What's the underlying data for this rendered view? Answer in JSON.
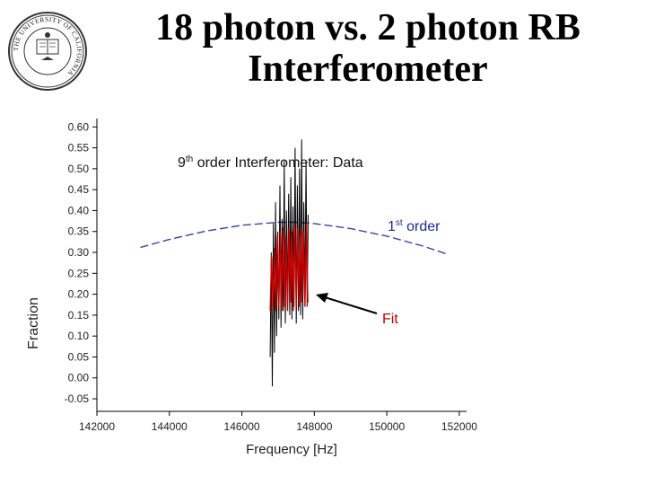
{
  "slide": {
    "title_line1": "18 photon vs. 2 photon RB",
    "title_line2": "Interferometer",
    "seal_text": "THE UNIVERSITY OF CALIFORNIA"
  },
  "colors": {
    "data_line": "#000000",
    "fit_line": "#cc0000",
    "first_order_line": "#3344aa",
    "first_order_label": "#1a2a9a",
    "fit_label": "#cc0000",
    "axis": "#000000"
  },
  "chart_data": {
    "type": "line",
    "title_main": "9",
    "title_sup": "th",
    "title_rest": " order Interferometer: Data",
    "xlabel": "Frequency [Hz]",
    "ylabel": "Fraction",
    "xlim": [
      142000,
      152200
    ],
    "ylim": [
      -0.08,
      0.62
    ],
    "x_ticks": [
      142000,
      144000,
      146000,
      148000,
      150000,
      152000
    ],
    "x_tick_labels": [
      "142000",
      "144000",
      "146000",
      "148000",
      "150000",
      "152000"
    ],
    "y_ticks": [
      0.6,
      0.55,
      0.5,
      0.45,
      0.4,
      0.35,
      0.3,
      0.25,
      0.2,
      0.15,
      0.1,
      0.05,
      0.0,
      -0.05
    ],
    "y_tick_labels": [
      "0.60",
      "0.55",
      "0.50",
      "0.45",
      "0.40",
      "0.35",
      "0.30",
      "0.25",
      "0.20",
      "0.15",
      "0.10",
      "0.05",
      "0.00",
      "-0.05"
    ],
    "series": [
      {
        "name": "Data (9th order)",
        "x": [
          146780,
          146810,
          146840,
          146870,
          146900,
          146930,
          146960,
          146990,
          147020,
          147050,
          147080,
          147110,
          147140,
          147170,
          147200,
          147230,
          147260,
          147290,
          147320,
          147350,
          147380,
          147410,
          147440,
          147470,
          147500,
          147530,
          147560,
          147590,
          147620,
          147650,
          147680,
          147710,
          147740,
          147770,
          147800,
          147830
        ],
        "y": [
          0.05,
          0.3,
          -0.02,
          0.37,
          0.06,
          0.42,
          0.1,
          0.35,
          0.14,
          0.46,
          0.12,
          0.38,
          0.16,
          0.52,
          0.13,
          0.4,
          0.18,
          0.44,
          0.15,
          0.48,
          0.14,
          0.41,
          0.17,
          0.55,
          0.13,
          0.46,
          0.16,
          0.5,
          0.15,
          0.57,
          0.14,
          0.42,
          0.19,
          0.52,
          0.17,
          0.39
        ]
      },
      {
        "name": "Fit",
        "x": [
          146780,
          146820,
          146860,
          146900,
          146940,
          146980,
          147020,
          147060,
          147100,
          147140,
          147180,
          147220,
          147260,
          147300,
          147340,
          147380,
          147420,
          147460,
          147500,
          147540,
          147580,
          147620,
          147660,
          147700,
          147740,
          147780,
          147820
        ],
        "y": [
          0.16,
          0.29,
          0.17,
          0.31,
          0.16,
          0.34,
          0.17,
          0.35,
          0.16,
          0.36,
          0.17,
          0.34,
          0.16,
          0.36,
          0.18,
          0.35,
          0.16,
          0.37,
          0.17,
          0.36,
          0.17,
          0.36,
          0.18,
          0.35,
          0.17,
          0.37,
          0.18
        ]
      },
      {
        "name": "1st order",
        "x": [
          143200,
          144000,
          145000,
          146000,
          147000,
          147500,
          148000,
          149000,
          150000,
          151000,
          151700
        ],
        "y": [
          0.312,
          0.331,
          0.351,
          0.365,
          0.372,
          0.372,
          0.369,
          0.357,
          0.339,
          0.315,
          0.295
        ]
      }
    ],
    "annotations": [
      {
        "text_main": "1",
        "text_sup": "st",
        "text_rest": " order"
      },
      {
        "text": "Fit"
      }
    ]
  }
}
